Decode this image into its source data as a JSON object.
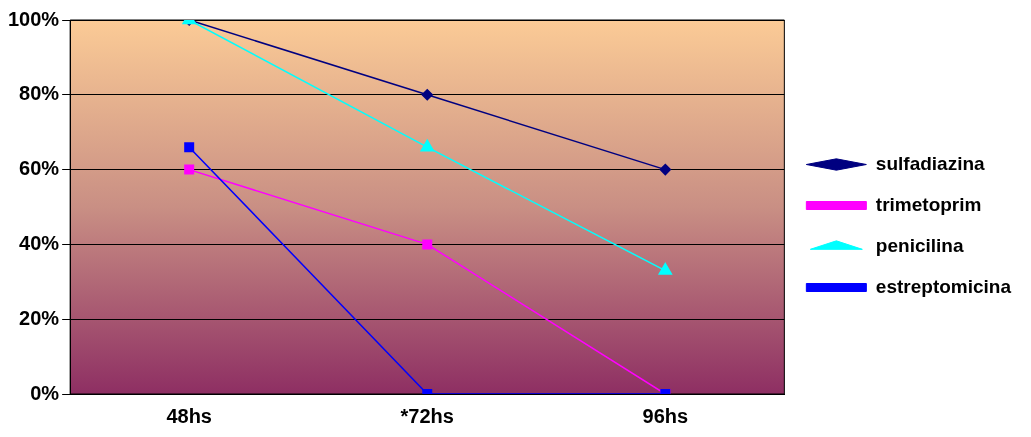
{
  "chart_data": {
    "type": "line",
    "categories": [
      "48hs",
      "*72hs",
      "96hs"
    ],
    "series": [
      {
        "name": "sulfadiazina",
        "color": "#000080",
        "values": [
          100,
          80,
          60
        ],
        "marker": "diamond"
      },
      {
        "name": "trimetoprim",
        "color": "#ff00ff",
        "values": [
          60,
          40,
          0
        ],
        "marker": "square"
      },
      {
        "name": "penicilina",
        "color": "#00ffff",
        "values": [
          100,
          66,
          33
        ],
        "marker": "triangle"
      },
      {
        "name": "estreptomicina",
        "color": "#0000ff",
        "values": [
          66,
          0,
          0
        ],
        "marker": "square"
      }
    ],
    "ylim": [
      0,
      100
    ],
    "yticks": [
      {
        "value": 0,
        "label": "0%"
      },
      {
        "value": 20,
        "label": "20%"
      },
      {
        "value": 40,
        "label": "40%"
      },
      {
        "value": 60,
        "label": "60%"
      },
      {
        "value": 80,
        "label": "80%"
      },
      {
        "value": 100,
        "label": "100%"
      }
    ],
    "grid": "y",
    "legend": "right",
    "line_style": "solid"
  }
}
